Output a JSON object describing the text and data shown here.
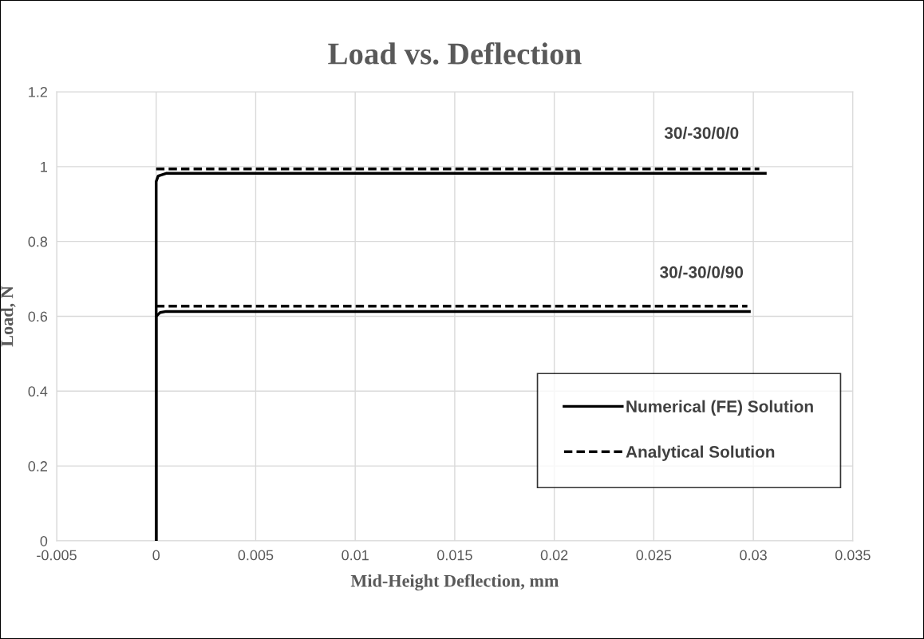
{
  "chart_data": {
    "type": "line",
    "title": "Load vs. Deflection",
    "xlabel": "Mid-Height Deflection, mm",
    "ylabel": "Load, N",
    "xlim": [
      -0.005,
      0.035
    ],
    "xticks": [
      -0.005,
      0,
      0.005,
      0.01,
      0.015,
      0.02,
      0.025,
      0.03,
      0.035
    ],
    "ylim": [
      0,
      1.2
    ],
    "yticks": [
      0,
      0.2,
      0.4,
      0.6,
      0.8,
      1,
      1.2
    ],
    "grid": true,
    "legend": "bottom right",
    "marker": "none",
    "series": [
      {
        "name": "Numerical (FE) Solution",
        "color": "#000000",
        "line_style": "solid",
        "x": [
          0,
          0,
          0.0001,
          0.0005,
          0.0306
        ],
        "values": [
          0,
          0.96,
          0.975,
          0.982,
          0.982
        ]
      },
      {
        "name": "Analytical Solution",
        "color": "#000000",
        "line_style": "dashed",
        "x": [
          0,
          0.0303
        ],
        "values": [
          0.994,
          0.994
        ]
      },
      {
        "color": "#000000",
        "line_style": "solid",
        "x": [
          0,
          0,
          0.0002,
          0.0005,
          0.0298
        ],
        "values": [
          0,
          0.6,
          0.61,
          0.613,
          0.613
        ]
      },
      {
        "color": "#000000",
        "line_style": "dashed",
        "x": [
          0,
          0.0297
        ],
        "values": [
          0.627,
          0.627
        ]
      }
    ],
    "annotations": [
      "30/-30/0/0",
      "30/-30/0/90"
    ]
  }
}
